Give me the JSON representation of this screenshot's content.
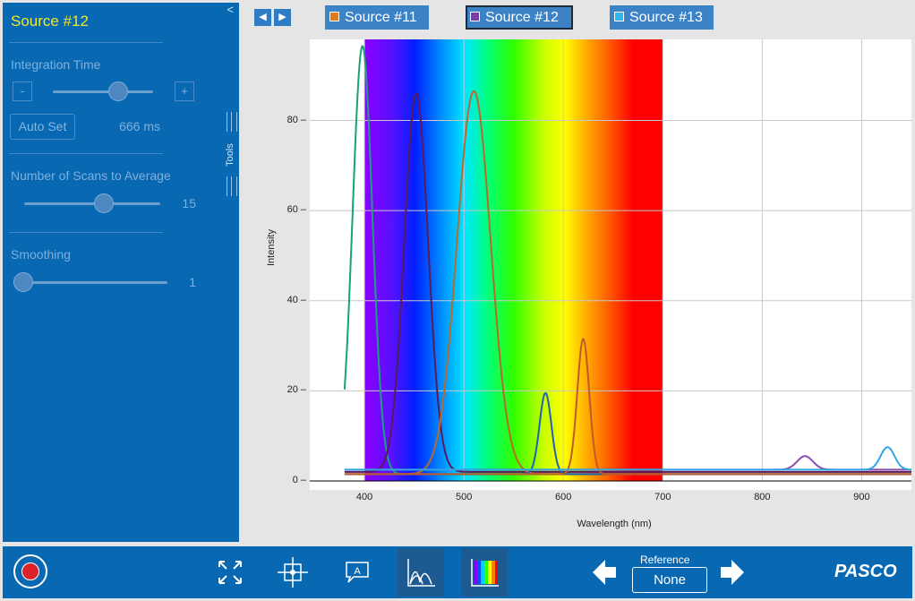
{
  "sidebar": {
    "title": "Source #12",
    "collapse_glyph": "<",
    "integration_label": "Integration Time",
    "integration_value": "666 ms",
    "minus": "-",
    "plus": "+",
    "autoset_label": "Auto Set",
    "scans_label": "Number of Scans to Average",
    "scans_value": "15",
    "smoothing_label": "Smoothing",
    "smoothing_value": "1",
    "tools_label": "Tools"
  },
  "tabs": [
    {
      "label": "Source #11",
      "color": "#e07b1a"
    },
    {
      "label": "Source #12",
      "color": "#7b3fa0"
    },
    {
      "label": "Source #13",
      "color": "#2fb6ef"
    }
  ],
  "bottom": {
    "reference_label": "Reference",
    "reference_value": "None",
    "brand": "PASCO"
  },
  "icons": {
    "record": "record-icon",
    "fit": "fit-icon",
    "coordinates": "coordinate-icon",
    "annotation": "annotation-icon",
    "peaks": "peak-icon",
    "spectrum": "spectrum-icon"
  },
  "chart_data": {
    "type": "line",
    "xlabel": "Wavelength (nm)",
    "ylabel": "Intensity",
    "xlim": [
      345,
      950
    ],
    "ylim": [
      -2,
      98
    ],
    "xticks": [
      400,
      500,
      600,
      700,
      800,
      900
    ],
    "yticks": [
      0,
      20,
      40,
      60,
      80
    ],
    "visible_band": [
      400,
      700
    ],
    "series": [
      {
        "color": "#1aa17a",
        "peaks": [
          {
            "x": 398,
            "y": 95,
            "w": 10
          }
        ],
        "base": 1.5,
        "xr": [
          380,
          950
        ]
      },
      {
        "color": "#5a1a5a",
        "peaks": [
          {
            "x": 452,
            "y": 84,
            "w": 12
          }
        ],
        "base": 2,
        "xr": [
          380,
          950
        ]
      },
      {
        "color": "#b86a2a",
        "peaks": [
          {
            "x": 510,
            "y": 85,
            "w": 17
          }
        ],
        "base": 1.5,
        "xr": [
          380,
          950
        ]
      },
      {
        "color": "#1e63b0",
        "peaks": [
          {
            "x": 582,
            "y": 18,
            "w": 6
          }
        ],
        "base": 1.5,
        "xr": [
          380,
          950
        ]
      },
      {
        "color": "#c05a2a",
        "peaks": [
          {
            "x": 620,
            "y": 30,
            "w": 6
          }
        ],
        "base": 1.5,
        "xr": [
          380,
          950
        ]
      },
      {
        "color": "#8a4db0",
        "peaks": [
          {
            "x": 843,
            "y": 3,
            "w": 8
          }
        ],
        "base": 2.5,
        "xr": [
          380,
          950
        ]
      },
      {
        "color": "#2fa8e6",
        "peaks": [
          {
            "x": 926,
            "y": 5,
            "w": 7
          }
        ],
        "base": 2.5,
        "xr": [
          380,
          950
        ]
      }
    ]
  }
}
